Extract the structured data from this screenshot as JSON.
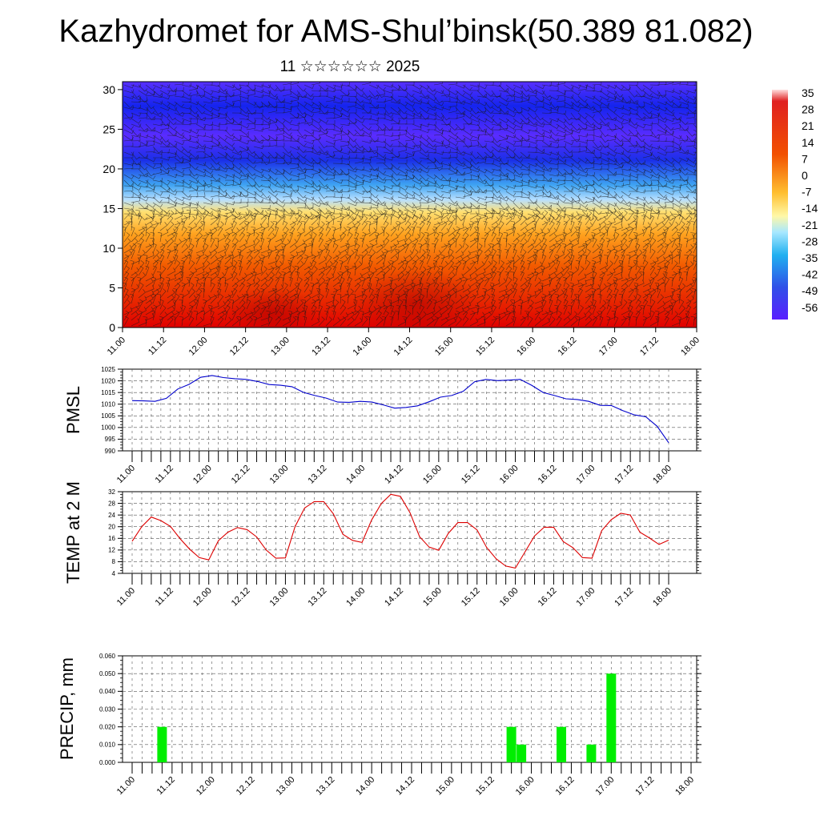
{
  "title": "Kazhydromet for AMS-Shul’binsk(50.389 81.082)",
  "subtitle": "11 ☆☆☆☆☆☆ 2025",
  "colorbar": {
    "labels": [
      "35",
      "28",
      "21",
      "14",
      "7",
      "0",
      "-7",
      "-14",
      "-21",
      "-28",
      "-35",
      "-42",
      "-49",
      "-56"
    ]
  },
  "time_labels": [
    "11.00",
    "11.12",
    "12.00",
    "12.12",
    "13.00",
    "13.12",
    "14.00",
    "14.12",
    "15.00",
    "15.12",
    "16.00",
    "16.12",
    "17.00",
    "17.12",
    "18.00"
  ],
  "chart_data": [
    {
      "type": "heatmap",
      "panel": "vertical-section",
      "y_ticks": [
        0,
        5,
        10,
        15,
        20,
        25,
        30
      ],
      "ylim": [
        0,
        31
      ],
      "x_ticks": [
        "11.00",
        "11.12",
        "12.00",
        "12.12",
        "13.00",
        "13.12",
        "14.00",
        "14.12",
        "15.00",
        "15.12",
        "16.00",
        "16.12",
        "17.00",
        "17.12",
        "18.00"
      ],
      "color_range": [
        -56,
        35
      ],
      "overlay": "wind barbs"
    },
    {
      "type": "line",
      "panel": "pmsl",
      "ylabel": "PMSL",
      "y_ticks": [
        990,
        995,
        1000,
        1005,
        1010,
        1015,
        1020,
        1025
      ],
      "ylim": [
        990,
        1025
      ],
      "color": "#0000cc",
      "x_ticks": [
        "11.00",
        "11.12",
        "12.00",
        "12.12",
        "13.00",
        "13.12",
        "14.00",
        "14.12",
        "15.00",
        "15.12",
        "16.00",
        "16.12",
        "17.00",
        "17.12",
        "18.00"
      ],
      "values": [
        1011.5,
        1011.4,
        1011.2,
        1012.5,
        1016.5,
        1018.5,
        1021.5,
        1022.3,
        1021.4,
        1020.9,
        1020.6,
        1019.7,
        1018.4,
        1018.1,
        1017.5,
        1015.1,
        1013.7,
        1012.6,
        1010.9,
        1010.8,
        1011.2,
        1010.9,
        1009.7,
        1008.3,
        1008.6,
        1009.3,
        1011.0,
        1013.0,
        1013.7,
        1015.5,
        1019.6,
        1020.6,
        1020.1,
        1020.3,
        1020.6,
        1018.1,
        1015.0,
        1013.7,
        1012.3,
        1012.0,
        1011.2,
        1009.5,
        1009.4,
        1007.2,
        1005.4,
        1004.6,
        1000.5,
        993.5
      ]
    },
    {
      "type": "line",
      "panel": "temp2m",
      "ylabel": "TEMP at 2 M",
      "y_ticks": [
        4,
        8,
        12,
        16,
        20,
        24,
        28,
        32
      ],
      "ylim": [
        4,
        32
      ],
      "color": "#dd0000",
      "x_ticks": [
        "11.00",
        "11.12",
        "12.00",
        "12.12",
        "13.00",
        "13.12",
        "14.00",
        "14.12",
        "15.00",
        "15.12",
        "16.00",
        "16.12",
        "17.00",
        "17.12",
        "18.00"
      ],
      "values": [
        15.0,
        20.0,
        23.3,
        22.1,
        20.1,
        15.9,
        12.3,
        9.4,
        8.6,
        15.2,
        18.1,
        19.7,
        19.0,
        16.5,
        12.0,
        9.2,
        9.3,
        20.0,
        26.4,
        28.6,
        28.6,
        24.4,
        17.4,
        15.3,
        14.6,
        22.3,
        27.9,
        31.1,
        30.4,
        24.8,
        16.6,
        13.0,
        11.9,
        17.7,
        21.4,
        21.4,
        18.9,
        12.9,
        9.0,
        6.5,
        5.8,
        11.3,
        16.8,
        19.8,
        19.8,
        14.9,
        12.8,
        9.4,
        9.2,
        18.6,
        22.4,
        24.6,
        24.0,
        18.1,
        16.1,
        13.9,
        15.4
      ]
    },
    {
      "type": "bar",
      "panel": "precip",
      "ylabel": "PRECIP, mm",
      "y_ticks": [
        "0.000",
        "0.010",
        "0.020",
        "0.030",
        "0.040",
        "0.050",
        "0.060"
      ],
      "ylim": [
        0,
        0.06
      ],
      "color": "#00ee00",
      "x_ticks": [
        "11.00",
        "11.12",
        "12.00",
        "12.12",
        "13.00",
        "13.12",
        "14.00",
        "14.12",
        "15.00",
        "15.12",
        "16.00",
        "16.12",
        "17.00",
        "17.12",
        "18.00"
      ],
      "x_hours": [
        9,
        114,
        117,
        129,
        138,
        144
      ],
      "values": [
        0.02,
        0.02,
        0.01,
        0.02,
        0.01,
        0.05
      ]
    }
  ]
}
